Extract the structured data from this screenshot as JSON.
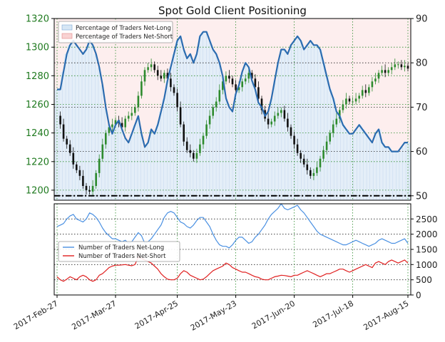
{
  "chart_data": [
    {
      "type": "line",
      "title": "Spot Gold Client Positioning",
      "left_axis": {
        "ticks": [
          1200,
          1220,
          1240,
          1260,
          1280,
          1300,
          1320
        ],
        "range": [
          1193,
          1320
        ],
        "color": "#1f7a1f"
      },
      "right_axis": {
        "ticks": [
          50,
          60,
          70,
          80,
          90
        ],
        "range": [
          49,
          90
        ]
      },
      "grid": true,
      "legend": {
        "placement": "top-left",
        "entries": [
          {
            "name": "Percentage of Traders Net-Long",
            "color": "#a8c8ea"
          },
          {
            "name": "Percentage of Traders Net-Short",
            "color": "#f2a9a9"
          }
        ]
      },
      "reference_line": {
        "value": 50,
        "style": "dash-dot",
        "color": "#000000"
      },
      "series": [
        {
          "name": "Percentage of Traders Net-Long",
          "color": "#2b6cb0",
          "values": [
            74,
            74,
            78,
            82,
            84,
            85,
            84,
            83,
            82,
            83,
            85,
            84,
            82,
            79,
            75,
            70,
            66,
            64,
            66,
            67,
            65,
            63,
            62,
            64,
            66,
            68,
            64,
            61,
            62,
            65,
            64,
            66,
            69,
            72,
            76,
            79,
            82,
            85,
            86,
            83,
            81,
            82,
            80,
            82,
            86,
            87,
            87,
            85,
            83,
            82,
            80,
            77,
            72,
            70,
            69,
            73,
            75,
            78,
            80,
            79,
            76,
            74,
            71,
            70,
            68,
            69,
            72,
            76,
            80,
            83,
            83,
            82,
            84,
            85,
            86,
            85,
            83,
            84,
            85,
            84,
            84,
            83,
            80,
            77,
            74,
            72,
            69,
            68,
            66,
            65,
            64,
            64,
            65,
            66,
            65,
            64,
            63,
            62,
            64,
            65,
            62,
            61,
            61,
            60,
            60,
            60,
            61,
            62,
            62
          ]
        },
        {
          "name": "Spot Gold OHLC (closes)",
          "color_up": "#2e8b2e",
          "color_down": "#111111",
          "values": [
            1252,
            1246,
            1236,
            1232,
            1226,
            1218,
            1214,
            1210,
            1203,
            1200,
            1199,
            1203,
            1212,
            1222,
            1232,
            1240,
            1244,
            1246,
            1249,
            1247,
            1244,
            1250,
            1252,
            1254,
            1258,
            1266,
            1276,
            1284,
            1286,
            1288,
            1284,
            1280,
            1278,
            1282,
            1278,
            1272,
            1268,
            1258,
            1246,
            1234,
            1228,
            1226,
            1222,
            1226,
            1232,
            1238,
            1246,
            1252,
            1258,
            1262,
            1270,
            1276,
            1280,
            1278,
            1274,
            1270,
            1272,
            1276,
            1278,
            1282,
            1278,
            1272,
            1264,
            1256,
            1250,
            1246,
            1248,
            1252,
            1254,
            1256,
            1250,
            1244,
            1238,
            1232,
            1226,
            1222,
            1218,
            1214,
            1210,
            1212,
            1216,
            1222,
            1228,
            1234,
            1240,
            1246,
            1250,
            1256,
            1260,
            1264,
            1262,
            1262,
            1264,
            1266,
            1270,
            1268,
            1272,
            1276,
            1278,
            1282,
            1284,
            1282,
            1284,
            1286,
            1288,
            1288,
            1286,
            1287,
            1285
          ]
        }
      ]
    },
    {
      "type": "line",
      "left_axis": {
        "ticks": [],
        "range": [
          0,
          3000
        ]
      },
      "right_axis": {
        "ticks": [
          0,
          500,
          1000,
          1500,
          2000,
          2500
        ],
        "range": [
          0,
          3000
        ]
      },
      "legend": {
        "placement": "center-left",
        "entries": [
          {
            "name": "Number of Traders Net-Long",
            "color": "#4a90e2"
          },
          {
            "name": "Number of Traders Net-Short",
            "color": "#e02020"
          }
        ]
      },
      "series": [
        {
          "name": "Number of Traders Net-Long",
          "color": "#4a90e2",
          "values": [
            2250,
            2300,
            2350,
            2500,
            2600,
            2650,
            2500,
            2450,
            2400,
            2500,
            2700,
            2650,
            2550,
            2400,
            2200,
            2050,
            1950,
            1850,
            1850,
            1800,
            1750,
            1800,
            1700,
            1750,
            1900,
            2050,
            1950,
            1700,
            1750,
            1850,
            2000,
            2150,
            2300,
            2550,
            2700,
            2750,
            2700,
            2550,
            2400,
            2350,
            2250,
            2200,
            2300,
            2450,
            2550,
            2550,
            2400,
            2250,
            2000,
            1800,
            1650,
            1600,
            1600,
            1550,
            1650,
            1800,
            1900,
            1900,
            1800,
            1700,
            1750,
            1900,
            2000,
            2150,
            2300,
            2500,
            2650,
            2750,
            2850,
            3000,
            2850,
            2800,
            2850,
            2900,
            2950,
            2800,
            2700,
            2550,
            2400,
            2250,
            2100,
            2000,
            1950,
            1900,
            1850,
            1800,
            1750,
            1700,
            1650,
            1650,
            1700,
            1750,
            1800,
            1750,
            1700,
            1650,
            1600,
            1650,
            1700,
            1800,
            1850,
            1800,
            1750,
            1700,
            1700,
            1750,
            1800,
            1850,
            1700
          ]
        },
        {
          "name": "Number of Traders Net-Short",
          "color": "#e02020",
          "values": [
            600,
            500,
            450,
            520,
            600,
            550,
            500,
            600,
            650,
            600,
            500,
            450,
            500,
            650,
            700,
            800,
            900,
            950,
            980,
            980,
            990,
            1000,
            980,
            960,
            1000,
            1250,
            1200,
            1150,
            1100,
            1050,
            950,
            850,
            700,
            600,
            520,
            500,
            500,
            550,
            700,
            800,
            750,
            650,
            600,
            550,
            500,
            520,
            600,
            700,
            800,
            850,
            900,
            950,
            1050,
            1000,
            900,
            850,
            800,
            750,
            750,
            700,
            650,
            600,
            580,
            520,
            500,
            500,
            550,
            600,
            620,
            650,
            640,
            620,
            600,
            650,
            650,
            700,
            750,
            800,
            750,
            700,
            650,
            600,
            650,
            700,
            700,
            750,
            800,
            850,
            850,
            800,
            750,
            800,
            850,
            900,
            950,
            1000,
            950,
            900,
            1050,
            1100,
            1050,
            1000,
            1100,
            1150,
            1100,
            1050,
            1100,
            1150,
            1050
          ]
        }
      ]
    }
  ],
  "x_axis": {
    "tick_labels": [
      "2017-Feb-27",
      "2017-Mar-27",
      "2017-Apr-25",
      "2017-May-23",
      "2017-Jun-20",
      "2017-Jul-18",
      "2017-Aug-15"
    ]
  }
}
